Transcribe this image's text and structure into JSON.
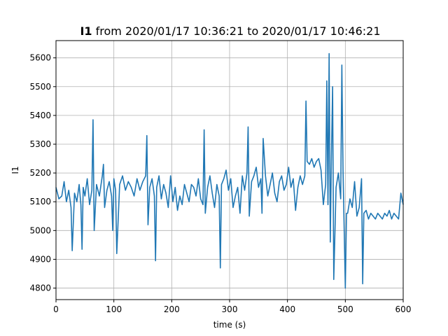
{
  "chart_data": {
    "type": "line",
    "title": {
      "bold_part": "I1",
      "rest": " from 2020/01/17 10:36:21 to 2020/01/17 10:46:21"
    },
    "xlabel": "time (s)",
    "ylabel": "I1",
    "xlim": [
      0,
      600
    ],
    "ylim": [
      4760,
      5660
    ],
    "grid": true,
    "x_ticks": [
      0,
      100,
      200,
      300,
      400,
      500,
      600
    ],
    "y_ticks": [
      4800,
      4900,
      5000,
      5100,
      5200,
      5300,
      5400,
      5500,
      5600
    ],
    "series": [
      {
        "color": "#1f77b4",
        "x": [
          0,
          5,
          10,
          14,
          18,
          22,
          26,
          28,
          32,
          36,
          40,
          43,
          45,
          47,
          50,
          54,
          58,
          62,
          64,
          66,
          70,
          75,
          80,
          82,
          84,
          88,
          92,
          96,
          98,
          100,
          103,
          105,
          110,
          115,
          120,
          125,
          130,
          135,
          140,
          145,
          150,
          155,
          157,
          159,
          162,
          166,
          170,
          172,
          174,
          178,
          182,
          186,
          190,
          194,
          198,
          202,
          206,
          210,
          214,
          218,
          222,
          226,
          230,
          234,
          238,
          242,
          246,
          250,
          254,
          256,
          258,
          262,
          266,
          270,
          274,
          278,
          282,
          284,
          286,
          290,
          294,
          298,
          302,
          306,
          310,
          314,
          318,
          322,
          326,
          330,
          332,
          334,
          338,
          342,
          346,
          350,
          354,
          356,
          358,
          362,
          366,
          370,
          374,
          378,
          382,
          386,
          390,
          394,
          398,
          402,
          406,
          410,
          414,
          418,
          422,
          426,
          430,
          432,
          434,
          438,
          442,
          446,
          450,
          454,
          458,
          462,
          466,
          468,
          470,
          472,
          474,
          476,
          478,
          480,
          484,
          488,
          492,
          494,
          496,
          500,
          502,
          504,
          508,
          512,
          516,
          520,
          524,
          528,
          530,
          532,
          536,
          540,
          544,
          548,
          552,
          556,
          560,
          564,
          568,
          572,
          576,
          580,
          584,
          588,
          592,
          596,
          600
        ],
        "values": [
          5150,
          5110,
          5120,
          5170,
          5100,
          5140,
          5080,
          4930,
          5130,
          5100,
          5160,
          5090,
          4935,
          5150,
          5120,
          5180,
          5090,
          5140,
          5385,
          5000,
          5160,
          5120,
          5190,
          5230,
          5080,
          5140,
          5170,
          5120,
          5000,
          5180,
          5140,
          4920,
          5160,
          5190,
          5140,
          5170,
          5150,
          5120,
          5180,
          5140,
          5170,
          5190,
          5330,
          5020,
          5150,
          5180,
          5120,
          4895,
          5150,
          5190,
          5110,
          5160,
          5130,
          5080,
          5190,
          5100,
          5150,
          5070,
          5120,
          5090,
          5160,
          5130,
          5100,
          5160,
          5150,
          5120,
          5180,
          5110,
          5090,
          5350,
          5060,
          5150,
          5190,
          5130,
          5080,
          5160,
          5120,
          4870,
          5160,
          5180,
          5210,
          5140,
          5180,
          5080,
          5120,
          5150,
          5060,
          5190,
          5140,
          5200,
          5360,
          5050,
          5170,
          5190,
          5220,
          5150,
          5180,
          5060,
          5320,
          5190,
          5120,
          5160,
          5200,
          5130,
          5100,
          5170,
          5190,
          5140,
          5160,
          5220,
          5150,
          5180,
          5070,
          5150,
          5190,
          5160,
          5190,
          5450,
          5240,
          5230,
          5250,
          5220,
          5240,
          5250,
          5210,
          5090,
          5160,
          5520,
          5090,
          5615,
          4960,
          5260,
          5500,
          4830,
          5150,
          5200,
          5110,
          5575,
          5210,
          4800,
          5060,
          5060,
          5110,
          5080,
          5170,
          5050,
          5080,
          5180,
          4815,
          5060,
          5070,
          5040,
          5060,
          5050,
          5040,
          5060,
          5050,
          5040,
          5060,
          5050,
          5070,
          5040,
          5060,
          5050,
          5040,
          5130,
          5090
        ]
      }
    ]
  }
}
